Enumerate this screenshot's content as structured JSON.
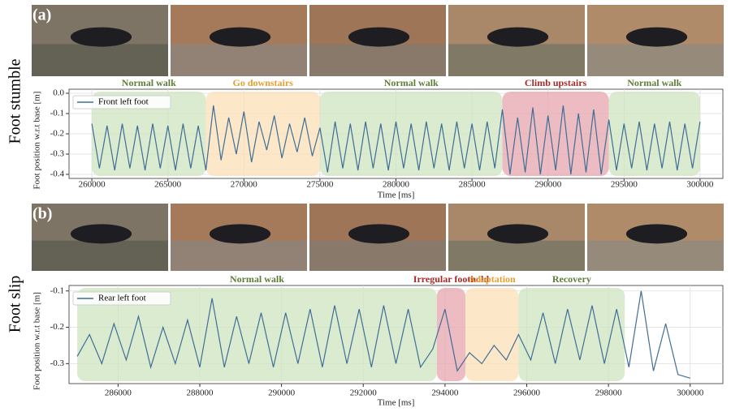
{
  "chart_data": [
    {
      "type": "line",
      "panel_label": "(a)",
      "row_label": "Foot stumble",
      "xlabel": "Time [ms]",
      "ylabel": "Foot position w.r.t base [m]",
      "xlim": [
        258500,
        301500
      ],
      "ylim": [
        -0.42,
        0.02
      ],
      "xticks": [
        260000,
        265000,
        270000,
        275000,
        280000,
        285000,
        290000,
        295000,
        300000
      ],
      "yticks": [
        {
          "value": 0,
          "label": "0.0"
        },
        -0.1,
        -0.2,
        -0.3,
        -0.4
      ],
      "grid": true,
      "legend": "upper left",
      "regions": [
        {
          "label": "Normal walk",
          "start": 260000,
          "end": 267500,
          "color": "#cfe4c0",
          "text_color": "#5e7d3a"
        },
        {
          "label": "Go downstairs",
          "start": 267500,
          "end": 275000,
          "color": "#fbe0b6",
          "text_color": "#e3a032"
        },
        {
          "label": "Normal walk",
          "start": 275000,
          "end": 287000,
          "color": "#cfe4c0",
          "text_color": "#5e7d3a"
        },
        {
          "label": "Climb upstairs",
          "start": 287000,
          "end": 294000,
          "color": "#e6a6ad",
          "text_color": "#a42b2b"
        },
        {
          "label": "Normal walk",
          "start": 294000,
          "end": 300000,
          "color": "#cfe4c0",
          "text_color": "#5e7d3a"
        }
      ],
      "x": [
        260000,
        260500,
        261000,
        261500,
        262000,
        262500,
        263000,
        263500,
        264000,
        264500,
        265000,
        265500,
        266000,
        266500,
        267000,
        267500,
        268000,
        268500,
        269000,
        269500,
        270000,
        270500,
        271000,
        271500,
        272000,
        272500,
        273000,
        273500,
        274000,
        274500,
        275000,
        275500,
        276000,
        276500,
        277000,
        277500,
        278000,
        278500,
        279000,
        279500,
        280000,
        280500,
        281000,
        281500,
        282000,
        282500,
        283000,
        283500,
        284000,
        284500,
        285000,
        285500,
        286000,
        286500,
        287000,
        287500,
        288000,
        288500,
        289000,
        289500,
        290000,
        290500,
        291000,
        291500,
        292000,
        292500,
        293000,
        293500,
        294000,
        294500,
        295000,
        295500,
        296000,
        296500,
        297000,
        297500,
        298000,
        298500,
        299000,
        299500,
        300000
      ],
      "series": [
        {
          "name": "Front left foot",
          "color": "#3f6e96",
          "values": [
            -0.15,
            -0.37,
            -0.16,
            -0.38,
            -0.15,
            -0.37,
            -0.16,
            -0.38,
            -0.15,
            -0.37,
            -0.16,
            -0.38,
            -0.15,
            -0.37,
            -0.16,
            -0.38,
            -0.06,
            -0.33,
            -0.12,
            -0.3,
            -0.09,
            -0.34,
            -0.14,
            -0.28,
            -0.11,
            -0.32,
            -0.15,
            -0.29,
            -0.12,
            -0.31,
            -0.17,
            -0.39,
            -0.14,
            -0.37,
            -0.15,
            -0.38,
            -0.14,
            -0.37,
            -0.15,
            -0.38,
            -0.14,
            -0.37,
            -0.15,
            -0.38,
            -0.14,
            -0.37,
            -0.15,
            -0.38,
            -0.14,
            -0.37,
            -0.15,
            -0.38,
            -0.14,
            -0.37,
            -0.08,
            -0.4,
            -0.12,
            -0.39,
            -0.07,
            -0.4,
            -0.11,
            -0.38,
            -0.06,
            -0.4,
            -0.1,
            -0.39,
            -0.08,
            -0.4,
            -0.13,
            -0.38,
            -0.15,
            -0.37,
            -0.14,
            -0.38,
            -0.15,
            -0.37,
            -0.14,
            -0.38,
            -0.15,
            -0.37,
            -0.14
          ]
        }
      ]
    },
    {
      "type": "line",
      "panel_label": "(b)",
      "row_label": "Foot slip",
      "xlabel": "Time [ms]",
      "ylabel": "Foot position w.r.t base [m]",
      "xlim": [
        284800,
        300800
      ],
      "ylim": [
        -0.355,
        -0.085
      ],
      "xticks": [
        286000,
        288000,
        290000,
        292000,
        294000,
        296000,
        298000,
        300000
      ],
      "yticks": [
        -0.3,
        -0.2,
        -0.1
      ],
      "grid": true,
      "legend": "upper left",
      "regions": [
        {
          "label": "Normal walk",
          "start": 285000,
          "end": 293800,
          "color": "#cfe4c0",
          "text_color": "#5e7d3a"
        },
        {
          "label": "Irregular foothold",
          "start": 293800,
          "end": 294500,
          "color": "#e6a6ad",
          "text_color": "#a42b2b"
        },
        {
          "label": "Adaptation",
          "start": 294500,
          "end": 295800,
          "color": "#fbe0b6",
          "text_color": "#e3a032"
        },
        {
          "label": "Recovery",
          "start": 295800,
          "end": 298400,
          "color": "#cfe4c0",
          "text_color": "#5e7d3a"
        }
      ],
      "x": [
        285000,
        285300,
        285600,
        285900,
        286200,
        286500,
        286800,
        287100,
        287400,
        287700,
        288000,
        288300,
        288600,
        288900,
        289200,
        289500,
        289800,
        290100,
        290400,
        290700,
        291000,
        291300,
        291600,
        291900,
        292200,
        292500,
        292800,
        293100,
        293400,
        293700,
        294000,
        294300,
        294600,
        294900,
        295200,
        295500,
        295800,
        296100,
        296400,
        296700,
        297000,
        297300,
        297600,
        297900,
        298200,
        298500,
        298800,
        299100,
        299400,
        299700,
        300000
      ],
      "series": [
        {
          "name": "Rear left foot",
          "color": "#3f6e96",
          "values": [
            -0.28,
            -0.22,
            -0.3,
            -0.19,
            -0.29,
            -0.17,
            -0.31,
            -0.2,
            -0.3,
            -0.18,
            -0.31,
            -0.12,
            -0.31,
            -0.17,
            -0.3,
            -0.16,
            -0.31,
            -0.16,
            -0.3,
            -0.15,
            -0.31,
            -0.14,
            -0.3,
            -0.15,
            -0.31,
            -0.14,
            -0.3,
            -0.15,
            -0.31,
            -0.26,
            -0.15,
            -0.32,
            -0.27,
            -0.3,
            -0.25,
            -0.29,
            -0.22,
            -0.29,
            -0.16,
            -0.3,
            -0.15,
            -0.29,
            -0.14,
            -0.3,
            -0.15,
            -0.31,
            -0.1,
            -0.32,
            -0.19,
            -0.33,
            -0.34
          ]
        }
      ]
    }
  ]
}
